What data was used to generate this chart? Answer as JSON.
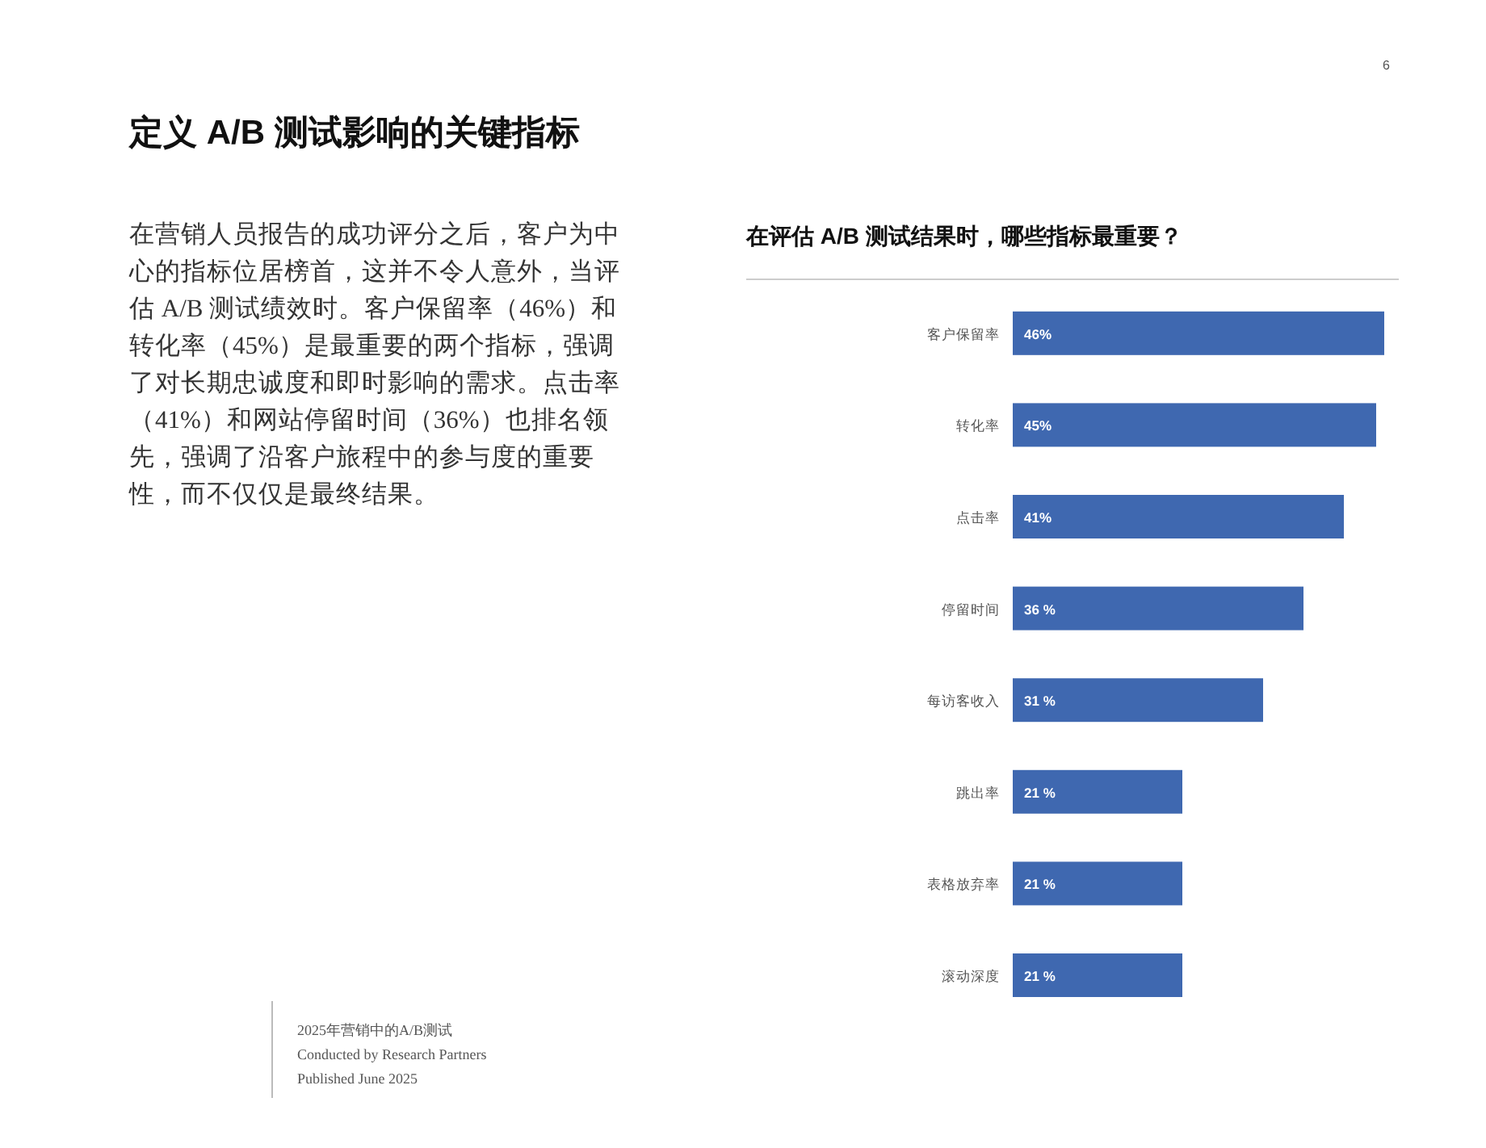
{
  "chart_data": {
    "type": "bar",
    "orientation": "horizontal",
    "title": "在评估 A/B 测试结果时，哪些指标最重要？",
    "categories": [
      "客户保留率",
      "转化率",
      "点击率",
      "停留时间",
      "每访客收入",
      "跳出率",
      "表格放弃率",
      "滚动深度"
    ],
    "values": [
      46,
      45,
      41,
      36,
      31,
      21,
      21,
      21
    ],
    "value_labels": [
      "46%",
      "45%",
      "41%",
      "36 %",
      "31 %",
      "21 %",
      "21 %",
      "21 %"
    ],
    "color": "#3f68b0",
    "annotations": [
      "定义 A/B 测试影响的关键指标",
      "在营销人员报告的成功评分之后，客户为中心的指标位居榜首，这并不令人意外，当评估 A/B 测试绩效时。客户保留率（46%）和转化率（45%）是最重要的两个指标，强调了对长期忠诚度和即时影响的需求。点击率（41%）和网站停留时间（36%）也排名领先，强调了沿客户旅程中的参与度的重要性，而不仅仅是最终结果。",
      "6",
      "2025年营销中的A/B测试",
      "Conducted by Research Partners",
      "Published June 2025"
    ]
  }
}
